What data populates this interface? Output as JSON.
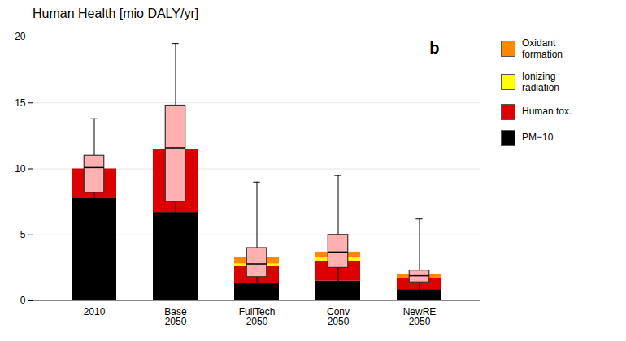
{
  "chart_data": {
    "type": "bar",
    "stacked": true,
    "title": "Human Health [mio DALY/yr]",
    "categories": [
      "2010",
      "Base\n2050",
      "FullTech\n2050",
      "Conv\n2050",
      "NewRE\n2050"
    ],
    "series": [
      {
        "name": "PM−10",
        "color": "#000000",
        "values": [
          7.8,
          6.7,
          1.3,
          1.5,
          0.85
        ]
      },
      {
        "name": "Human tox.",
        "color": "#dd0000",
        "values": [
          2.2,
          4.8,
          1.3,
          1.5,
          0.85
        ]
      },
      {
        "name": "Ionizing\nradiation",
        "color": "#ffff00",
        "values": [
          0.0,
          0.0,
          0.2,
          0.3,
          0.0
        ]
      },
      {
        "name": "Oxidant\nformation",
        "color": "#ff8800",
        "values": [
          0.0,
          0.0,
          0.5,
          0.4,
          0.3
        ]
      }
    ],
    "boxplot": {
      "color": "#ffb0b0",
      "whisker_low": [
        0.5,
        0.4,
        0.2,
        0.4,
        0.3
      ],
      "box_low": [
        8.2,
        7.5,
        1.8,
        2.5,
        1.4
      ],
      "median": [
        10.1,
        11.6,
        2.8,
        3.7,
        1.9
      ],
      "box_high": [
        11.0,
        14.8,
        4.0,
        5.0,
        2.3
      ],
      "whisker_high": [
        13.8,
        19.5,
        9.0,
        9.5,
        6.2
      ]
    },
    "annotations": [
      {
        "text": "b"
      }
    ],
    "ylim": [
      0,
      20
    ],
    "yticks": [
      0,
      5,
      10,
      15,
      20
    ],
    "grid": true,
    "legend": "right"
  }
}
